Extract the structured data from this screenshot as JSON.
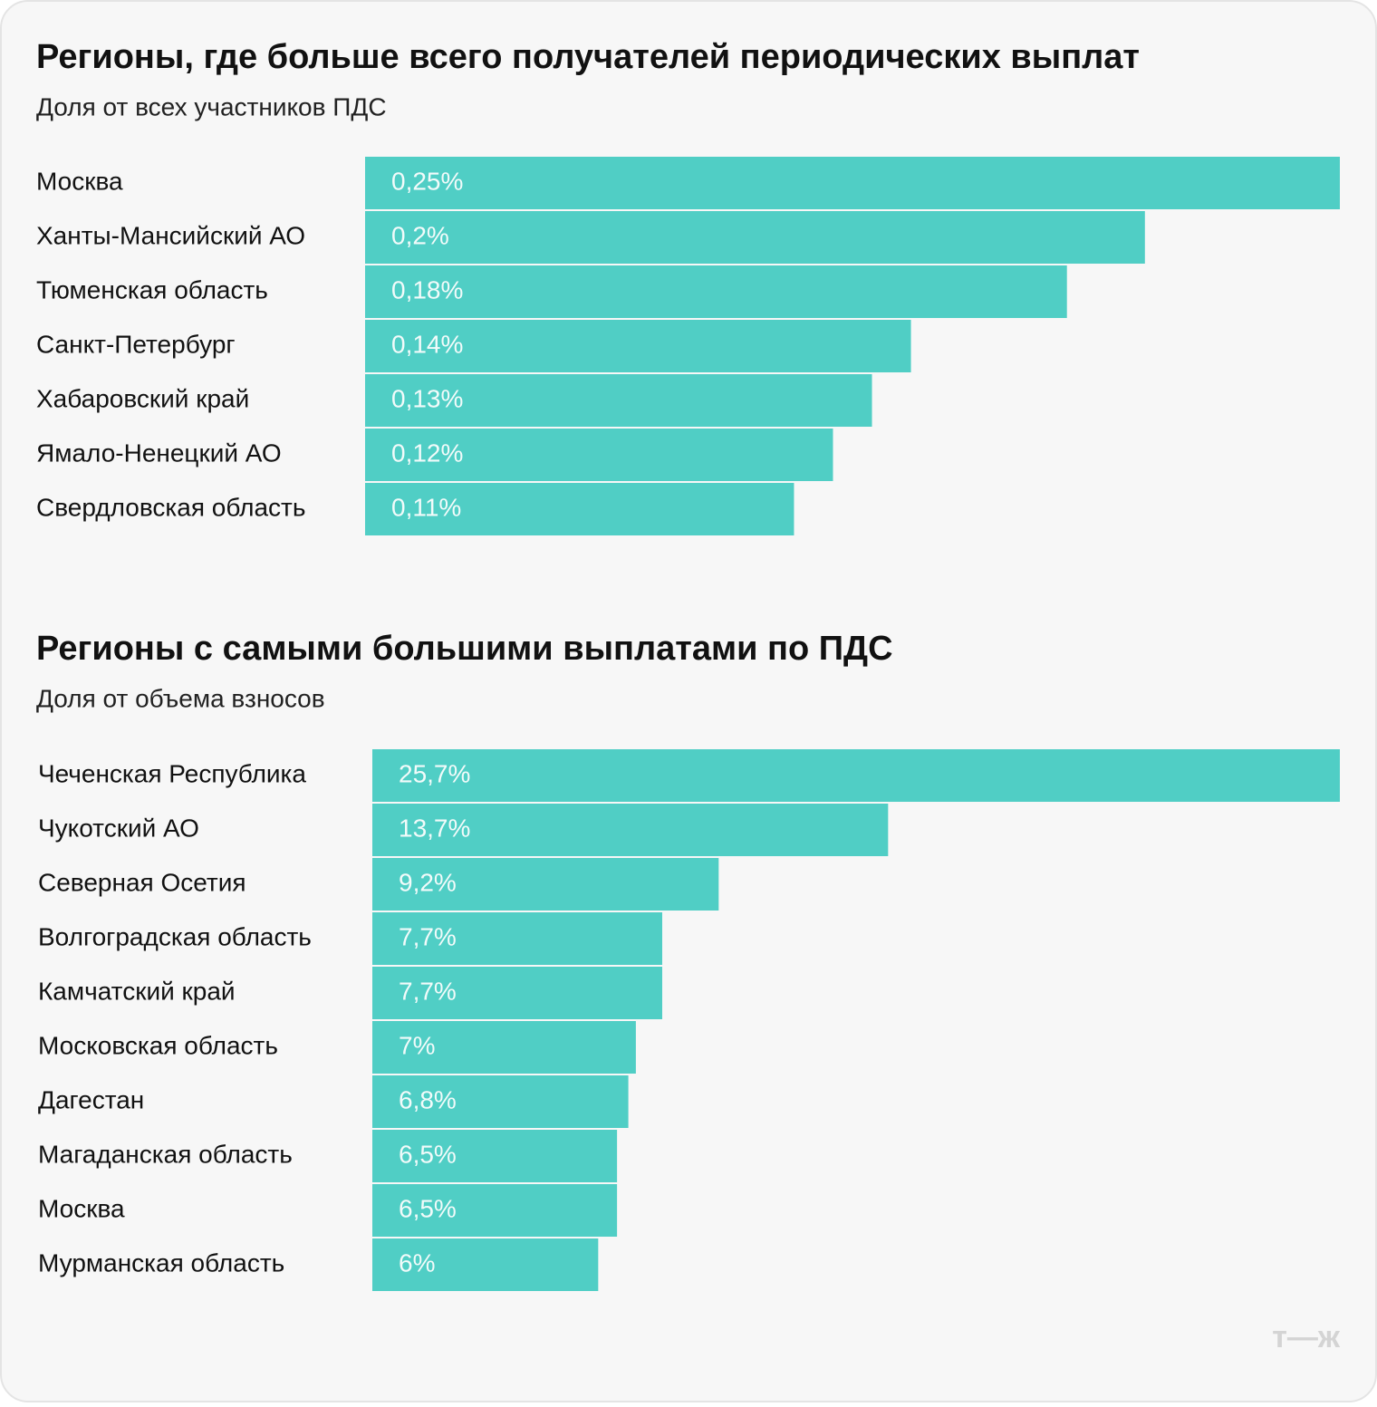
{
  "chart_data": [
    {
      "type": "bar",
      "orientation": "horizontal",
      "title": "Регионы, где больше всего получателей периодических выплат",
      "subtitle": "Доля от всех участников ПДС",
      "categories": [
        "Москва",
        "Ханты-Мансийский АО",
        "Тюменская область",
        "Санкт-Петербург",
        "Хабаровский край",
        "Ямало-Ненецкий АО",
        "Свердловская область"
      ],
      "values": [
        0.25,
        0.2,
        0.18,
        0.14,
        0.13,
        0.12,
        0.11
      ],
      "value_labels": [
        "0,25%",
        "0,2%",
        "0,18%",
        "0,14%",
        "0,13%",
        "0,12%",
        "0,11%"
      ],
      "color": "#50cec5"
    },
    {
      "type": "bar",
      "orientation": "horizontal",
      "title": "Регионы с самыми большими выплатами по ПДС",
      "subtitle": "Доля от объема взносов",
      "categories": [
        "Чеченская Республика",
        "Чукотский АО",
        "Северная Осетия",
        "Волгоградская область",
        "Камчатский край",
        "Московская область",
        "Дагестан",
        "Магаданская область",
        "Москва",
        "Мурманская область"
      ],
      "values": [
        25.7,
        13.7,
        9.2,
        7.7,
        7.7,
        7,
        6.8,
        6.5,
        6.5,
        6
      ],
      "value_labels": [
        "25,7%",
        "13,7%",
        "9,2%",
        "7,7%",
        "7,7%",
        "7%",
        "6,8%",
        "6,5%",
        "6,5%",
        "6%"
      ],
      "color": "#50cec5"
    }
  ],
  "logo": "т—ж"
}
